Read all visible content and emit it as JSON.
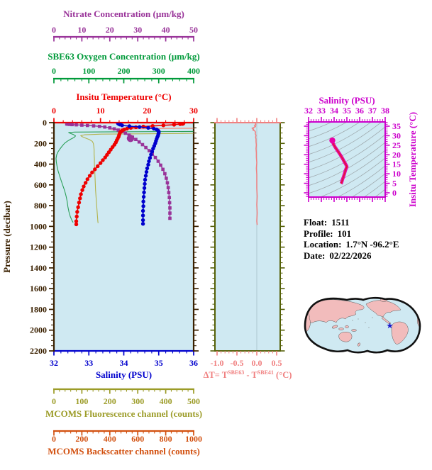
{
  "colors": {
    "nitrate": "#993399",
    "oxygen": "#009a3a",
    "oxygen_curve": "#2ca05a",
    "temperature": "#ee0000",
    "pressure": "#3a2000",
    "salinity": "#0000cd",
    "fluorescence": "#9c9c28",
    "fluorescence_curve": "#b3b34d",
    "backscatter": "#d2500f",
    "backscatter_curve": "#f28d7d",
    "delta_t": "#f08080",
    "panel_frame_olive": "#556008",
    "ts_frame": "#cc00cc",
    "ts_curve": "#e800a8",
    "ts_curve_inner": "#dd2222",
    "plot_bg": "#cfe9f2",
    "map_land": "#f2bcbc",
    "map_outline": "#111111",
    "star": "#1a1acc",
    "contours": "#9fa9ad",
    "zero_line": "#b4cdd6"
  },
  "info": {
    "float_label": "Float:",
    "float_value": "1511",
    "profile_label": "Profile:",
    "profile_value": "101",
    "location_label": "Location:",
    "location_value": "1.7°N  -96.2°E",
    "date_label": "Date:",
    "date_value": "02/22/2026"
  },
  "chart_data": [
    {
      "id": "profile-plot",
      "type": "line",
      "y_axis": {
        "title": "Pressure (decibar)",
        "range": [
          0,
          2200
        ],
        "major_ticks": [
          0,
          200,
          400,
          600,
          800,
          1000,
          1200,
          1400,
          1600,
          1800,
          2000,
          2200
        ],
        "minor_step": 50
      },
      "x_axes": [
        {
          "id": "nitrate",
          "title": "Nitrate Concentration (µm/kg)",
          "range": [
            0,
            50
          ],
          "major_ticks": [
            0,
            10,
            20,
            30,
            40,
            50
          ],
          "minor_step": 2
        },
        {
          "id": "oxygen",
          "title": "SBE63 Oxygen Concentration (µm/kg)",
          "range": [
            0,
            400
          ],
          "major_ticks": [
            0,
            100,
            200,
            300,
            400
          ],
          "minor_step": 20
        },
        {
          "id": "temperature",
          "title": "Insitu Temperature (°C)",
          "range": [
            0,
            30
          ],
          "major_ticks": [
            0,
            10,
            20,
            30
          ],
          "minor_step": 2
        },
        {
          "id": "salinity",
          "title": "Salinity (PSU)",
          "range": [
            32,
            36
          ],
          "major_ticks": [
            32,
            33,
            34,
            35,
            36
          ],
          "minor_step": 0.2
        },
        {
          "id": "fluorescence",
          "title": "MCOMS Fluorescence channel (counts)",
          "range": [
            0,
            500
          ],
          "major_ticks": [
            0,
            100,
            200,
            300,
            400,
            500
          ],
          "minor_step": 20
        },
        {
          "id": "backscatter",
          "title": "MCOMS Backscatter channel (counts)",
          "range": [
            0,
            1000
          ],
          "major_ticks": [
            0,
            200,
            400,
            600,
            800,
            1000
          ],
          "minor_step": 40
        }
      ],
      "series": [
        {
          "name": "oxygen",
          "axis": "oxygen",
          "color": "#2ca05a",
          "width": 1.1,
          "marker": "none",
          "pressure": [
            60,
            85,
            88,
            91,
            95,
            103,
            115,
            128,
            142,
            160,
            180,
            200,
            225,
            250,
            280,
            310,
            345,
            380,
            420,
            465,
            510,
            560,
            610,
            660,
            710,
            760,
            810,
            860,
            905,
            945,
            962
          ],
          "values": [
            420,
            415,
            180,
            60,
            42,
            47,
            56,
            62,
            58,
            48,
            38,
            30,
            24,
            18,
            12,
            8,
            6,
            7,
            9,
            12,
            16,
            21,
            26,
            31,
            35,
            38,
            40,
            43,
            47,
            52,
            55
          ]
        },
        {
          "name": "fluorescence",
          "axis": "fluorescence",
          "color": "#b3b34d",
          "width": 1.1,
          "marker": "none",
          "pressure": [
            70,
            100,
            103,
            107,
            111,
            117,
            125,
            135,
            148,
            163,
            180,
            200,
            230,
            265,
            305,
            350,
            400,
            455,
            515,
            580,
            650,
            725,
            800,
            875,
            950,
            968
          ],
          "values": [
            520,
            515,
            505,
            330,
            170,
            110,
            96,
            101,
            113,
            127,
            137,
            141,
            143,
            144,
            144,
            145,
            145,
            146,
            147,
            148,
            149,
            151,
            153,
            155,
            157,
            158
          ]
        },
        {
          "name": "backscatter",
          "axis": "backscatter",
          "color": "#f28d7d",
          "width": 1.3,
          "marker": "none",
          "pressure": [
            20,
            50,
            54,
            57,
            60,
            64,
            69
          ],
          "values": [
            1030,
            1025,
            1010,
            700,
            480,
            420,
            408
          ]
        },
        {
          "name": "nitrate",
          "axis": "nitrate",
          "color": "#993399",
          "width": 1.4,
          "marker": "square",
          "blob": {
            "pressure": 152,
            "value": 27.4
          },
          "pressure": [
            13,
            15,
            17,
            19,
            21,
            24,
            27,
            31,
            36,
            42,
            50,
            60,
            72,
            86,
            102,
            120,
            140,
            162,
            186,
            212,
            240,
            270,
            302,
            336,
            372,
            410,
            450,
            492,
            536,
            580,
            626,
            674,
            722,
            772,
            822,
            872,
            922
          ],
          "values": [
            4.6,
            5.0,
            5.6,
            6.5,
            8.0,
            10.0,
            12.0,
            14.2,
            16.3,
            18.2,
            20.0,
            21.6,
            23.0,
            24.3,
            25.6,
            26.9,
            28.1,
            29.3,
            30.5,
            31.7,
            32.9,
            34.1,
            35.2,
            36.3,
            37.3,
            38.2,
            39.0,
            39.7,
            40.2,
            40.6,
            40.9,
            41.1,
            41.3,
            41.4,
            41.5,
            41.5,
            41.5
          ]
        },
        {
          "name": "temperature",
          "axis": "temperature",
          "color": "#ee0000",
          "width": 1.6,
          "marker": "circle",
          "start_big": true,
          "pressure": [
            2,
            8,
            14,
            20,
            26,
            32,
            38,
            44,
            50,
            58,
            66,
            75,
            85,
            95,
            107,
            120,
            135,
            152,
            170,
            190,
            212,
            235,
            260,
            285,
            310,
            335,
            362,
            390,
            420,
            450,
            480,
            512,
            545,
            580,
            615,
            650,
            690,
            730,
            770,
            815,
            860,
            905,
            950,
            980
          ],
          "values": [
            27.6,
            27.5,
            27.1,
            25.8,
            23.5,
            21.2,
            19.2,
            17.6,
            16.5,
            15.7,
            15.1,
            14.7,
            14.4,
            14.2,
            14.1,
            14.0,
            13.9,
            13.7,
            13.5,
            13.3,
            13.0,
            12.6,
            12.2,
            11.8,
            11.4,
            11.0,
            10.5,
            10.0,
            9.4,
            8.8,
            8.2,
            7.7,
            7.2,
            6.8,
            6.4,
            6.1,
            5.8,
            5.6,
            5.4,
            5.2,
            5.0,
            4.9,
            4.8,
            4.8
          ]
        },
        {
          "name": "salinity",
          "axis": "salinity",
          "color": "#0000cd",
          "width": 1.6,
          "marker": "circle",
          "start_big": true,
          "pressure": [
            2,
            10,
            18,
            26,
            34,
            42,
            50,
            58,
            66,
            76,
            86,
            98,
            110,
            125,
            140,
            158,
            178,
            200,
            225,
            250,
            278,
            308,
            340,
            372,
            405,
            440,
            475,
            512,
            550,
            590,
            630,
            672,
            715,
            760,
            805,
            850,
            895,
            940,
            975
          ],
          "values": [
            33.86,
            33.86,
            33.88,
            33.95,
            34.16,
            34.45,
            34.7,
            34.86,
            34.94,
            34.98,
            35.0,
            35.0,
            34.99,
            34.98,
            34.96,
            34.94,
            34.92,
            34.9,
            34.87,
            34.84,
            34.81,
            34.78,
            34.75,
            34.72,
            34.7,
            34.67,
            34.65,
            34.63,
            34.61,
            34.6,
            34.59,
            34.58,
            34.57,
            34.56,
            34.56,
            34.55,
            34.55,
            34.55,
            34.55
          ]
        }
      ]
    },
    {
      "id": "delta-t-panel",
      "type": "line",
      "x_axis": {
        "range": [
          -1.054,
          0.589
        ],
        "major_ticks": [
          -1.0,
          -0.5,
          0.0,
          0.5
        ],
        "tick_labels": [
          "-1.0",
          "-0.5",
          "0.0",
          "0.5"
        ],
        "minor_step": 0.1,
        "title_parts": {
          "prefix": "ΔT= T",
          "sup1": "SBE63",
          "mid": " - T",
          "sup2": "SBE41",
          "suffix": " (°C)"
        }
      },
      "zero_reference": 0.0,
      "series": {
        "name": "delta_t",
        "color": "#f08080",
        "pressure": [
          8,
          15,
          22,
          30,
          38,
          46,
          54,
          62,
          70,
          80,
          92,
          106,
          122,
          140,
          160,
          185,
          215,
          250,
          290,
          335,
          385,
          440,
          500,
          565,
          635,
          710,
          790,
          870,
          950,
          985
        ],
        "values": [
          -0.02,
          -0.04,
          -0.02,
          -0.06,
          -0.03,
          -0.07,
          -0.12,
          -0.08,
          -0.1,
          -0.05,
          -0.03,
          -0.04,
          -0.02,
          -0.03,
          -0.02,
          -0.02,
          -0.01,
          -0.02,
          -0.01,
          -0.01,
          0.0,
          -0.01,
          0.0,
          0.0,
          0.0,
          0.01,
          0.0,
          0.01,
          0.0,
          0.01
        ]
      }
    },
    {
      "id": "ts-diagram",
      "type": "line",
      "x_axis": {
        "title": "Salinity (PSU)",
        "range": [
          32,
          38
        ],
        "major_ticks": [
          32,
          33,
          34,
          35,
          36,
          37,
          38
        ],
        "minor_step": 0.2
      },
      "y_axis": {
        "title": "Insitu Temperature (°C)",
        "range": [
          -2.2,
          37.2
        ],
        "major_ticks": [
          0,
          5,
          10,
          15,
          20,
          25,
          30,
          35
        ],
        "minor_step": 1
      },
      "isopycnal_contours": true,
      "curve": {
        "salinity": [
          33.86,
          33.88,
          33.95,
          34.1,
          34.3,
          34.5,
          34.68,
          34.82,
          34.92,
          34.98,
          35.0,
          34.97,
          34.93,
          34.88,
          34.84,
          34.8,
          34.76,
          34.72,
          34.68,
          34.64,
          34.61,
          34.58,
          34.56,
          34.55
        ],
        "temperature": [
          27.5,
          26.8,
          25.5,
          23.8,
          21.8,
          19.8,
          17.8,
          16.0,
          14.8,
          14.1,
          13.8,
          13.2,
          12.5,
          11.6,
          10.7,
          9.8,
          9.0,
          8.2,
          7.4,
          6.6,
          5.9,
          5.3,
          4.9,
          4.8
        ]
      }
    }
  ]
}
